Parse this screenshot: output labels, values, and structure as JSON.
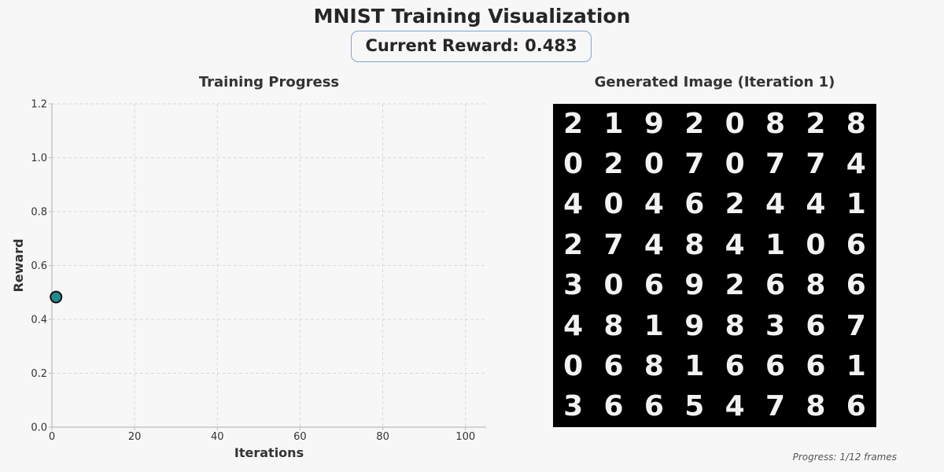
{
  "title": "MNIST Training Visualization",
  "reward_box": {
    "text": "Current Reward: 0.483"
  },
  "left_panel": {
    "title": "Training Progress"
  },
  "right_panel": {
    "title": "Generated Image (Iteration 1)",
    "digits": [
      [
        "2",
        "1",
        "9",
        "2",
        "0",
        "8",
        "2",
        "8"
      ],
      [
        "0",
        "2",
        "0",
        "7",
        "0",
        "7",
        "7",
        "4"
      ],
      [
        "4",
        "0",
        "4",
        "6",
        "2",
        "4",
        "4",
        "1"
      ],
      [
        "2",
        "7",
        "4",
        "8",
        "4",
        "1",
        "0",
        "6"
      ],
      [
        "3",
        "0",
        "6",
        "9",
        "2",
        "6",
        "8",
        "6"
      ],
      [
        "4",
        "8",
        "1",
        "9",
        "8",
        "3",
        "6",
        "7"
      ],
      [
        "0",
        "6",
        "8",
        "1",
        "6",
        "6",
        "6",
        "1"
      ],
      [
        "3",
        "6",
        "6",
        "5",
        "4",
        "7",
        "8",
        "6"
      ]
    ]
  },
  "footer": {
    "progress_text": "Progress: 1/12 frames"
  },
  "colors": {
    "point_fill": "#238b8b",
    "point_stroke": "#111111",
    "grid": "#d9d9d9",
    "axis": "#bbbbbb",
    "reward_box_border": "#7ea6d4"
  },
  "chart_data": {
    "type": "scatter",
    "title": "Training Progress",
    "xlabel": "Iterations",
    "ylabel": "Reward",
    "xlim": [
      0,
      105
    ],
    "ylim": [
      0,
      1.2
    ],
    "xticks": [
      0,
      20,
      40,
      60,
      80,
      100
    ],
    "yticks": [
      0.0,
      0.2,
      0.4,
      0.6,
      0.8,
      1.0,
      1.2
    ],
    "grid": true,
    "points": [
      {
        "x": 1,
        "y": 0.483
      }
    ]
  }
}
